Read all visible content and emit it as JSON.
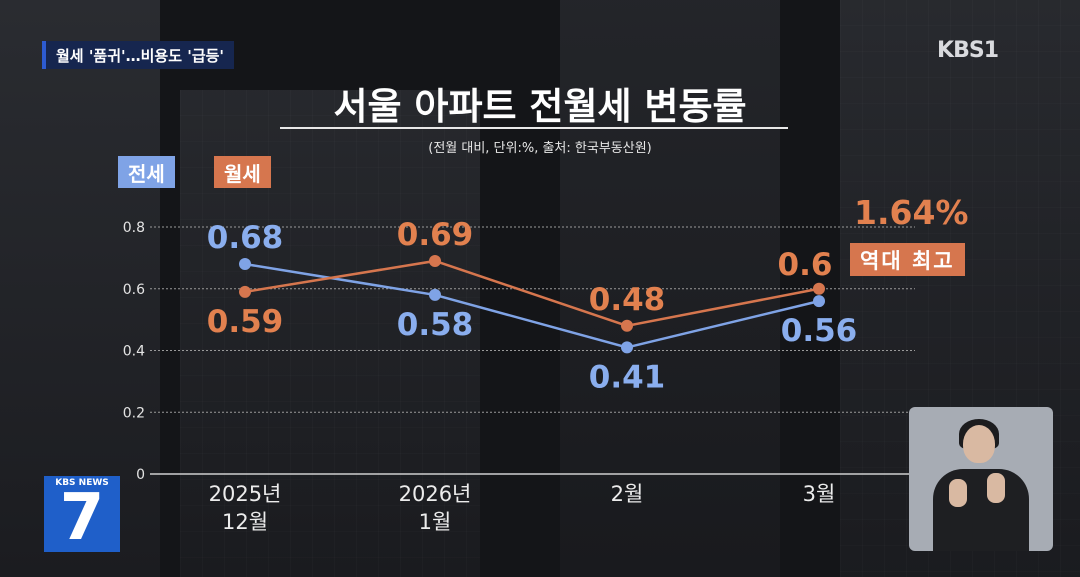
{
  "overlay": {
    "headline": "월세 '품귀'…비용도 '급등'",
    "channel_logo": "KBS",
    "channel_number": "1",
    "news_logo_label": "KBS NEWS",
    "news_logo_number": "7",
    "sign_language_interpreter": "sign-language-interpreter"
  },
  "chart_data": {
    "type": "line",
    "title": "서울 아파트 전월세 변동률",
    "subtitle": "(전월 대비, 단위:%, 출처: 한국부동산원)",
    "categories": [
      [
        "2025년",
        "12월"
      ],
      [
        "2026년",
        "1월"
      ],
      [
        "2월"
      ],
      [
        "3월"
      ]
    ],
    "yticks": [
      "0",
      "0.2",
      "0.4",
      "0.6",
      "0.8"
    ],
    "ylim": [
      0,
      0.8
    ],
    "grid": true,
    "legend": "top-left",
    "series": [
      {
        "name": "전세",
        "values": [
          0.68,
          0.58,
          0.41,
          0.56
        ],
        "labels": [
          "0.68",
          "0.58",
          "0.41",
          "0.56"
        ],
        "color": "#7fa3e6"
      },
      {
        "name": "월세",
        "values": [
          0.59,
          0.69,
          0.48,
          0.6
        ],
        "labels": [
          "0.59",
          "0.69",
          "0.48",
          "0.6"
        ],
        "color": "#d6764e"
      }
    ],
    "annotation": {
      "value": "1.64%",
      "badge": "역대 최고"
    }
  }
}
